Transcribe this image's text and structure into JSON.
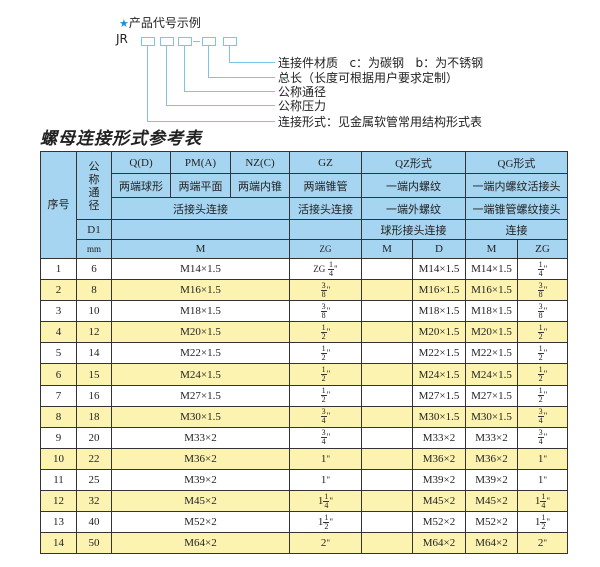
{
  "example": {
    "title": "产品代号示例",
    "code_prefix": "JR",
    "labels": [
      "连接件材质   c：为碳钢   b：为不锈钢",
      "总长（长度可根据用户要求定制）",
      "公称通径",
      "公称压力",
      "连接形式：见金属软管常用结构形式表"
    ]
  },
  "reference_title": "螺母连接形式参考表",
  "table": {
    "header": {
      "seq": "序号",
      "nominal_dia": "公称通径",
      "q": "Q(D)",
      "pm": "PM(A)",
      "nz": "NZ(C)",
      "gz": "GZ",
      "qz": "QZ形式",
      "qg": "QG形式",
      "q_desc": "两端球形",
      "pm_desc": "两端平面",
      "nz_desc": "两端内锥",
      "gz_desc": "两端锥管",
      "qz_desc": "一端内螺纹",
      "qg_desc": "一端内螺纹活接头",
      "qpn_conn": "活接头连接",
      "gz_conn": "活接头连接",
      "qz_conn1": "一端外螺纹",
      "qg_conn1": "一端锥管螺纹接头",
      "d1": "D1",
      "qz_conn2": "球形接头连接",
      "qg_conn2": "连接",
      "mm": "mm",
      "m": "M",
      "zg": "ZG",
      "qz_m": "M",
      "qz_d": "D",
      "qg_m": "M",
      "qg_zg": "ZG"
    },
    "rows": [
      {
        "no": "1",
        "d1": "6",
        "m": "M14×1.5",
        "zg": {
          "prefix": "ZG",
          "whole": "",
          "num": "1",
          "den": "4",
          "unit": "\""
        },
        "qz_m": "",
        "qz_d": "M14×1.5",
        "qg_m": "M14×1.5",
        "qg_zg": {
          "whole": "",
          "num": "1",
          "den": "4",
          "unit": "\""
        }
      },
      {
        "no": "2",
        "d1": "8",
        "m": "M16×1.5",
        "zg": {
          "whole": "",
          "num": "3",
          "den": "8",
          "unit": "\""
        },
        "qz_m": "",
        "qz_d": "M16×1.5",
        "qg_m": "M16×1.5",
        "qg_zg": {
          "whole": "",
          "num": "3",
          "den": "8",
          "unit": "\""
        }
      },
      {
        "no": "3",
        "d1": "10",
        "m": "M18×1.5",
        "zg": {
          "whole": "",
          "num": "3",
          "den": "8",
          "unit": "\""
        },
        "qz_m": "",
        "qz_d": "M18×1.5",
        "qg_m": "M18×1.5",
        "qg_zg": {
          "whole": "",
          "num": "3",
          "den": "8",
          "unit": "\""
        }
      },
      {
        "no": "4",
        "d1": "12",
        "m": "M20×1.5",
        "zg": {
          "whole": "",
          "num": "1",
          "den": "2",
          "unit": "\""
        },
        "qz_m": "",
        "qz_d": "M20×1.5",
        "qg_m": "M20×1.5",
        "qg_zg": {
          "whole": "",
          "num": "1",
          "den": "2",
          "unit": "\""
        }
      },
      {
        "no": "5",
        "d1": "14",
        "m": "M22×1.5",
        "zg": {
          "whole": "",
          "num": "1",
          "den": "2",
          "unit": "\""
        },
        "qz_m": "",
        "qz_d": "M22×1.5",
        "qg_m": "M22×1.5",
        "qg_zg": {
          "whole": "",
          "num": "1",
          "den": "2",
          "unit": "\""
        }
      },
      {
        "no": "6",
        "d1": "15",
        "m": "M24×1.5",
        "zg": {
          "whole": "",
          "num": "1",
          "den": "2",
          "unit": "\""
        },
        "qz_m": "",
        "qz_d": "M24×1.5",
        "qg_m": "M24×1.5",
        "qg_zg": {
          "whole": "",
          "num": "1",
          "den": "2",
          "unit": "\""
        }
      },
      {
        "no": "7",
        "d1": "16",
        "m": "M27×1.5",
        "zg": {
          "whole": "",
          "num": "1",
          "den": "2",
          "unit": "\""
        },
        "qz_m": "",
        "qz_d": "M27×1.5",
        "qg_m": "M27×1.5",
        "qg_zg": {
          "whole": "",
          "num": "1",
          "den": "2",
          "unit": "\""
        }
      },
      {
        "no": "8",
        "d1": "18",
        "m": "M30×1.5",
        "zg": {
          "whole": "",
          "num": "3",
          "den": "4",
          "unit": "\""
        },
        "qz_m": "",
        "qz_d": "M30×1.5",
        "qg_m": "M30×1.5",
        "qg_zg": {
          "whole": "",
          "num": "3",
          "den": "4",
          "unit": "\""
        }
      },
      {
        "no": "9",
        "d1": "20",
        "m": "M33×2",
        "zg": {
          "whole": "",
          "num": "3",
          "den": "4",
          "unit": "\""
        },
        "qz_m": "",
        "qz_d": "M33×2",
        "qg_m": "M33×2",
        "qg_zg": {
          "whole": "",
          "num": "3",
          "den": "4",
          "unit": "\""
        }
      },
      {
        "no": "10",
        "d1": "22",
        "m": "M36×2",
        "zg": {
          "whole": "1",
          "num": "",
          "den": "",
          "unit": "\""
        },
        "qz_m": "",
        "qz_d": "M36×2",
        "qg_m": "M36×2",
        "qg_zg": {
          "whole": "1",
          "num": "",
          "den": "",
          "unit": "\""
        }
      },
      {
        "no": "11",
        "d1": "25",
        "m": "M39×2",
        "zg": {
          "whole": "1",
          "num": "",
          "den": "",
          "unit": "\""
        },
        "qz_m": "",
        "qz_d": "M39×2",
        "qg_m": "M39×2",
        "qg_zg": {
          "whole": "1",
          "num": "",
          "den": "",
          "unit": "\""
        }
      },
      {
        "no": "12",
        "d1": "32",
        "m": "M45×2",
        "zg": {
          "whole": "1",
          "num": "1",
          "den": "4",
          "unit": "\""
        },
        "qz_m": "",
        "qz_d": "M45×2",
        "qg_m": "M45×2",
        "qg_zg": {
          "whole": "1",
          "num": "1",
          "den": "4",
          "unit": "\""
        }
      },
      {
        "no": "13",
        "d1": "40",
        "m": "M52×2",
        "zg": {
          "whole": "1",
          "num": "1",
          "den": "2",
          "unit": "\""
        },
        "qz_m": "",
        "qz_d": "M52×2",
        "qg_m": "M52×2",
        "qg_zg": {
          "whole": "1",
          "num": "1",
          "den": "2",
          "unit": "\""
        }
      },
      {
        "no": "14",
        "d1": "50",
        "m": "M64×2",
        "zg": {
          "whole": "2",
          "num": "",
          "den": "",
          "unit": "\""
        },
        "qz_m": "",
        "qz_d": "M64×2",
        "qg_m": "M64×2",
        "qg_zg": {
          "whole": "2",
          "num": "",
          "den": "",
          "unit": "\""
        }
      }
    ]
  },
  "colors": {
    "header_bg": "#a6d5f1",
    "alt_row_bg": "#fcf3b1",
    "diagram_line": "#7cc4e8",
    "star": "#1e8fd0"
  }
}
